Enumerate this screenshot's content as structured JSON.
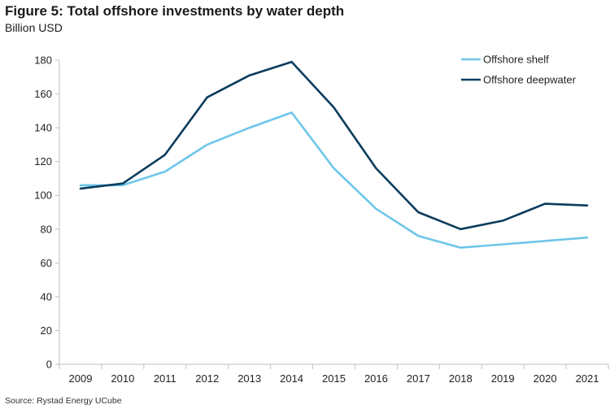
{
  "chart_data": {
    "type": "line",
    "title": "Figure 5: Total offshore investments by water depth",
    "subtitle": "Billion USD",
    "xlabel": "",
    "ylabel": "",
    "ylim": [
      0,
      180
    ],
    "yticks": [
      0,
      20,
      40,
      60,
      80,
      100,
      120,
      140,
      160,
      180
    ],
    "categories": [
      "2009",
      "2010",
      "2011",
      "2012",
      "2013",
      "2014",
      "2015",
      "2016",
      "2017",
      "2018",
      "2019",
      "2020",
      "2021"
    ],
    "series": [
      {
        "name": "Offshore shelf",
        "color": "#6ec6ea",
        "values": [
          106,
          106,
          114,
          130,
          140,
          149,
          116,
          92,
          76,
          69,
          71,
          73,
          75
        ]
      },
      {
        "name": "Offshore deepwater",
        "color": "#0b3c5d",
        "values": [
          104,
          107,
          124,
          158,
          171,
          179,
          152,
          116,
          90,
          80,
          85,
          95,
          94
        ]
      }
    ],
    "legend_position": "top-right",
    "grid": false
  },
  "source": "Source: Rystad Energy UCube"
}
